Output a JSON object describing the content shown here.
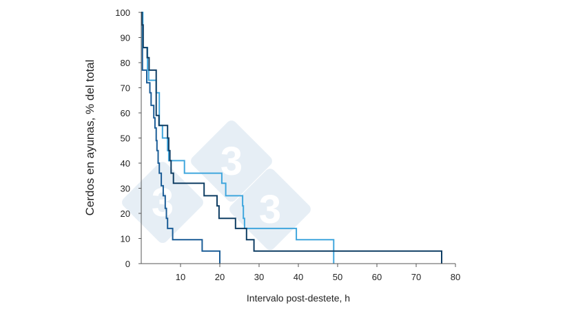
{
  "chart_data": {
    "type": "line",
    "title": "",
    "xlabel": "Intervalo post-destete, h",
    "ylabel": "Cerdos en ayunas, % del total",
    "xlim": [
      0,
      80
    ],
    "ylim": [
      0,
      100
    ],
    "x_ticks": [
      "10",
      "20",
      "30",
      "40",
      "50",
      "60",
      "70",
      "80"
    ],
    "y_ticks": [
      "0",
      "10",
      "20",
      "30",
      "40",
      "50",
      "60",
      "70",
      "80",
      "90",
      "100"
    ],
    "grid": false,
    "legend": "none",
    "step": true,
    "series": [
      {
        "color": "#1a5c96",
        "points": [
          [
            0,
            100
          ],
          [
            0.3,
            100
          ],
          [
            0.3,
            77
          ],
          [
            1.4,
            77
          ],
          [
            1.4,
            72
          ],
          [
            2.2,
            72
          ],
          [
            2.2,
            68
          ],
          [
            2.5,
            68
          ],
          [
            2.5,
            63
          ],
          [
            3.2,
            63
          ],
          [
            3.2,
            58
          ],
          [
            3.5,
            58
          ],
          [
            3.5,
            54
          ],
          [
            3.8,
            54
          ],
          [
            3.8,
            49
          ],
          [
            4,
            49
          ],
          [
            4,
            45
          ],
          [
            4.3,
            45
          ],
          [
            4.3,
            40
          ],
          [
            4.6,
            40
          ],
          [
            4.6,
            36
          ],
          [
            5.1,
            36
          ],
          [
            5.1,
            31
          ],
          [
            5.6,
            31
          ],
          [
            5.6,
            27
          ],
          [
            6.1,
            27
          ],
          [
            6.1,
            22
          ],
          [
            6.4,
            22
          ],
          [
            6.4,
            18
          ],
          [
            6.7,
            18
          ],
          [
            6.7,
            14
          ],
          [
            8,
            14
          ],
          [
            8,
            9.5
          ],
          [
            15.5,
            9.5
          ],
          [
            15.5,
            5
          ],
          [
            20,
            5
          ],
          [
            20,
            0
          ]
        ]
      },
      {
        "color": "#3fa6dd",
        "points": [
          [
            0,
            100
          ],
          [
            0.4,
            100
          ],
          [
            0.4,
            86
          ],
          [
            1.6,
            86
          ],
          [
            1.6,
            77
          ],
          [
            1.9,
            77
          ],
          [
            1.9,
            73
          ],
          [
            3.8,
            73
          ],
          [
            3.8,
            68
          ],
          [
            4.6,
            68
          ],
          [
            4.6,
            55
          ],
          [
            5.4,
            55
          ],
          [
            5.4,
            50
          ],
          [
            6.7,
            50
          ],
          [
            6.7,
            45
          ],
          [
            7,
            45
          ],
          [
            7,
            41
          ],
          [
            11,
            41
          ],
          [
            11,
            36
          ],
          [
            20.5,
            36
          ],
          [
            20.5,
            32
          ],
          [
            21.5,
            32
          ],
          [
            21.5,
            27
          ],
          [
            25.8,
            27
          ],
          [
            25.8,
            23
          ],
          [
            26,
            23
          ],
          [
            26,
            18
          ],
          [
            26.3,
            18
          ],
          [
            26.3,
            14
          ],
          [
            39.5,
            14
          ],
          [
            39.5,
            9.5
          ],
          [
            49,
            9.5
          ],
          [
            49,
            0
          ]
        ]
      },
      {
        "color": "#0e3d63",
        "points": [
          [
            0,
            100
          ],
          [
            0.2,
            100
          ],
          [
            0.2,
            95
          ],
          [
            0.5,
            95
          ],
          [
            0.5,
            86
          ],
          [
            1.5,
            86
          ],
          [
            1.5,
            82
          ],
          [
            2,
            82
          ],
          [
            2,
            77
          ],
          [
            3.8,
            77
          ],
          [
            3.8,
            59
          ],
          [
            4.5,
            59
          ],
          [
            4.5,
            55
          ],
          [
            6.7,
            55
          ],
          [
            6.7,
            50
          ],
          [
            7,
            50
          ],
          [
            7,
            45
          ],
          [
            7.3,
            45
          ],
          [
            7.3,
            41
          ],
          [
            7.6,
            41
          ],
          [
            7.6,
            36
          ],
          [
            8.2,
            36
          ],
          [
            8.2,
            32
          ],
          [
            16,
            32
          ],
          [
            16,
            27
          ],
          [
            19.3,
            27
          ],
          [
            19.3,
            23
          ],
          [
            19.8,
            23
          ],
          [
            19.8,
            18
          ],
          [
            24,
            18
          ],
          [
            24,
            14
          ],
          [
            26.8,
            14
          ],
          [
            26.8,
            9.5
          ],
          [
            28.7,
            9.5
          ],
          [
            28.7,
            5
          ],
          [
            76.5,
            5
          ],
          [
            76.5,
            0
          ]
        ]
      }
    ]
  }
}
